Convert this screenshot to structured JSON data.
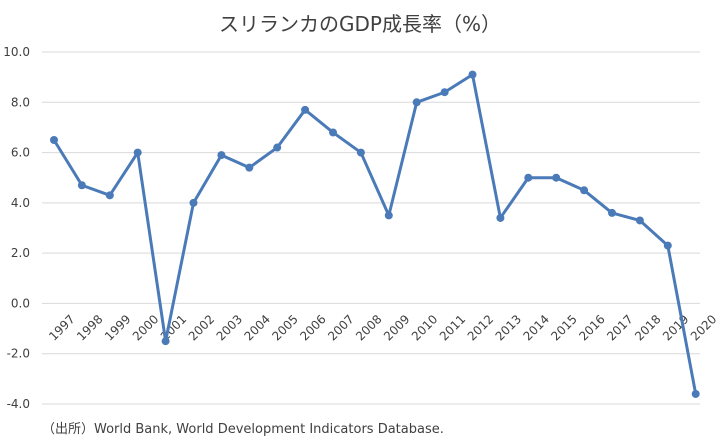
{
  "chart_data": {
    "type": "line",
    "title": "スリランカのGDP成長率（%）",
    "xlabel": "",
    "ylabel": "",
    "ylim": [
      -4.0,
      10.0
    ],
    "yticks": [
      "10.0",
      "8.0",
      "6.0",
      "4.0",
      "2.0",
      "0.0",
      "-2.0",
      "-4.0"
    ],
    "categories": [
      "1997",
      "1998",
      "1999",
      "2000",
      "2001",
      "2002",
      "2003",
      "2004",
      "2005",
      "2006",
      "2007",
      "2008",
      "2009",
      "2010",
      "2011",
      "2012",
      "2013",
      "2014",
      "2015",
      "2016",
      "2017",
      "2018",
      "2019",
      "2020"
    ],
    "series": [
      {
        "name": "GDP成長率",
        "color": "#4a7ab8",
        "values": [
          6.5,
          4.7,
          4.3,
          6.0,
          -1.5,
          4.0,
          5.9,
          5.4,
          6.2,
          7.7,
          6.8,
          6.0,
          3.5,
          8.0,
          8.4,
          9.1,
          3.4,
          5.0,
          5.0,
          4.5,
          3.6,
          3.3,
          2.3,
          -3.6
        ]
      }
    ],
    "grid": true,
    "source": "（出所）World Bank, World Development Indicators Database."
  }
}
